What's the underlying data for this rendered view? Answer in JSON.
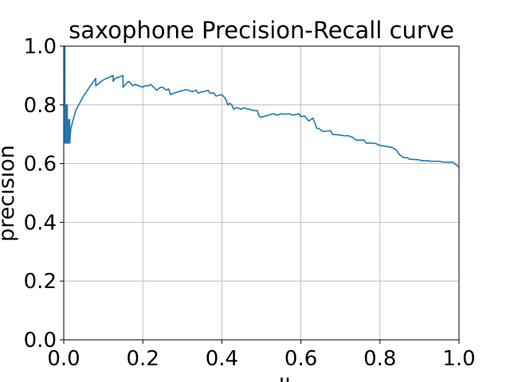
{
  "chart_data": {
    "type": "line",
    "title": "saxophone Precision-Recall curve",
    "xlabel": "recall",
    "ylabel": "precision",
    "xlim": [
      0.0,
      1.0
    ],
    "ylim": [
      0.0,
      1.0
    ],
    "grid": true,
    "x_ticks": [
      "0.0",
      "0.2",
      "0.4",
      "0.6",
      "0.8",
      "1.0"
    ],
    "y_ticks": [
      "0.0",
      "0.2",
      "0.4",
      "0.6",
      "0.8",
      "1.0"
    ],
    "line_color": "#1f77b4",
    "series": [
      {
        "x": [
          0.003,
          0.003,
          0.006,
          0.006,
          0.009,
          0.009,
          0.012,
          0.012,
          0.015,
          0.015,
          0.018,
          0.03,
          0.05,
          0.07,
          0.081,
          0.081,
          0.1,
          0.125,
          0.125,
          0.13,
          0.15,
          0.15,
          0.16,
          0.165,
          0.175,
          0.18,
          0.2,
          0.205,
          0.215,
          0.22,
          0.235,
          0.24,
          0.245,
          0.25,
          0.26,
          0.265,
          0.27,
          0.275,
          0.29,
          0.31,
          0.32,
          0.325,
          0.335,
          0.34,
          0.35,
          0.355,
          0.365,
          0.37,
          0.38,
          0.385,
          0.4,
          0.41,
          0.415,
          0.42,
          0.425,
          0.43,
          0.435,
          0.44,
          0.45,
          0.455,
          0.47,
          0.475,
          0.49,
          0.495,
          0.5,
          0.53,
          0.54,
          0.55,
          0.56,
          0.57,
          0.58,
          0.595,
          0.6,
          0.61,
          0.62,
          0.63,
          0.635,
          0.64,
          0.645,
          0.655,
          0.66,
          0.675,
          0.68,
          0.7,
          0.71,
          0.72,
          0.73,
          0.74,
          0.76,
          0.765,
          0.78,
          0.79,
          0.8,
          0.81,
          0.83,
          0.84,
          0.85,
          0.86,
          0.87,
          0.875,
          0.9,
          0.905,
          0.92,
          0.93,
          0.95,
          0.96,
          0.97,
          0.985,
          0.99,
          0.995,
          1.0
        ],
        "y": [
          1.0,
          0.67,
          0.67,
          0.8,
          0.8,
          0.67,
          0.67,
          0.75,
          0.75,
          0.67,
          0.72,
          0.78,
          0.83,
          0.87,
          0.89,
          0.865,
          0.885,
          0.9,
          0.88,
          0.89,
          0.9,
          0.86,
          0.875,
          0.88,
          0.865,
          0.87,
          0.86,
          0.865,
          0.865,
          0.87,
          0.85,
          0.855,
          0.86,
          0.86,
          0.85,
          0.855,
          0.835,
          0.838,
          0.845,
          0.852,
          0.848,
          0.845,
          0.85,
          0.84,
          0.845,
          0.845,
          0.85,
          0.84,
          0.84,
          0.83,
          0.835,
          0.82,
          0.8,
          0.805,
          0.8,
          0.785,
          0.79,
          0.79,
          0.785,
          0.79,
          0.785,
          0.782,
          0.78,
          0.76,
          0.758,
          0.77,
          0.765,
          0.77,
          0.768,
          0.77,
          0.765,
          0.77,
          0.76,
          0.762,
          0.745,
          0.755,
          0.74,
          0.72,
          0.72,
          0.71,
          0.71,
          0.712,
          0.7,
          0.697,
          0.695,
          0.695,
          0.69,
          0.68,
          0.68,
          0.67,
          0.67,
          0.668,
          0.662,
          0.66,
          0.655,
          0.648,
          0.63,
          0.62,
          0.62,
          0.615,
          0.613,
          0.61,
          0.61,
          0.608,
          0.608,
          0.605,
          0.605,
          0.605,
          0.598,
          0.594,
          0.588
        ]
      }
    ]
  }
}
